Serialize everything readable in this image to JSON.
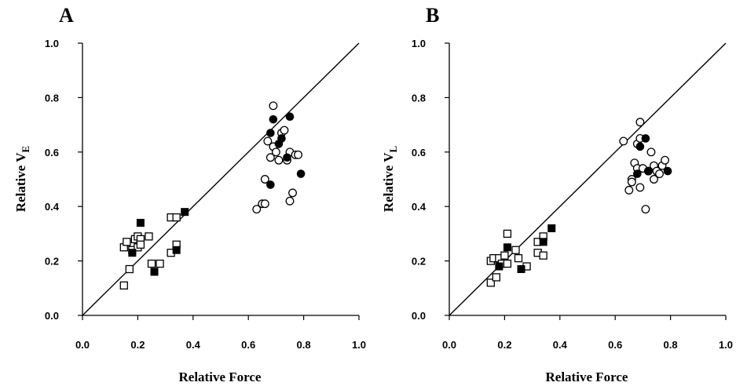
{
  "chart_data": [
    {
      "type": "scatter",
      "panel_label": "A",
      "xlabel": "Relative Force",
      "ylabel_main": "Relative V",
      "ylabel_sub": "E",
      "xlim": [
        0.0,
        1.0
      ],
      "ylim": [
        0.0,
        1.0
      ],
      "xticks": [
        "0.0",
        "0.2",
        "0.4",
        "0.6",
        "0.8",
        "1.0"
      ],
      "yticks": [
        "0.0",
        "0.2",
        "0.4",
        "0.6",
        "0.8",
        "1.0"
      ],
      "reference_line": [
        [
          0,
          0
        ],
        [
          1,
          1
        ]
      ],
      "series": [
        {
          "marker": "open-square",
          "points": [
            [
              0.15,
              0.11
            ],
            [
              0.15,
              0.25
            ],
            [
              0.16,
              0.27
            ],
            [
              0.17,
              0.17
            ],
            [
              0.18,
              0.24
            ],
            [
              0.19,
              0.28
            ],
            [
              0.2,
              0.29
            ],
            [
              0.2,
              0.25
            ],
            [
              0.21,
              0.28
            ],
            [
              0.21,
              0.26
            ],
            [
              0.24,
              0.29
            ],
            [
              0.25,
              0.19
            ],
            [
              0.28,
              0.19
            ],
            [
              0.32,
              0.23
            ],
            [
              0.32,
              0.36
            ],
            [
              0.34,
              0.36
            ],
            [
              0.34,
              0.26
            ]
          ]
        },
        {
          "marker": "filled-square",
          "points": [
            [
              0.18,
              0.23
            ],
            [
              0.21,
              0.34
            ],
            [
              0.26,
              0.16
            ],
            [
              0.34,
              0.24
            ],
            [
              0.37,
              0.38
            ]
          ]
        },
        {
          "marker": "open-circle",
          "points": [
            [
              0.63,
              0.39
            ],
            [
              0.65,
              0.41
            ],
            [
              0.66,
              0.41
            ],
            [
              0.66,
              0.5
            ],
            [
              0.67,
              0.64
            ],
            [
              0.68,
              0.58
            ],
            [
              0.69,
              0.77
            ],
            [
              0.69,
              0.62
            ],
            [
              0.7,
              0.6
            ],
            [
              0.71,
              0.57
            ],
            [
              0.72,
              0.67
            ],
            [
              0.73,
              0.68
            ],
            [
              0.74,
              0.57
            ],
            [
              0.75,
              0.6
            ],
            [
              0.75,
              0.42
            ],
            [
              0.76,
              0.45
            ],
            [
              0.77,
              0.59
            ],
            [
              0.78,
              0.59
            ]
          ]
        },
        {
          "marker": "filled-circle",
          "points": [
            [
              0.68,
              0.48
            ],
            [
              0.68,
              0.67
            ],
            [
              0.69,
              0.72
            ],
            [
              0.71,
              0.63
            ],
            [
              0.72,
              0.65
            ],
            [
              0.74,
              0.58
            ],
            [
              0.75,
              0.73
            ],
            [
              0.79,
              0.52
            ]
          ]
        }
      ]
    },
    {
      "type": "scatter",
      "panel_label": "B",
      "xlabel": "Relative Force",
      "ylabel_main": "Relative V",
      "ylabel_sub": "L",
      "xlim": [
        0.0,
        1.0
      ],
      "ylim": [
        0.0,
        1.0
      ],
      "xticks": [
        "0.0",
        "0.2",
        "0.4",
        "0.6",
        "0.8",
        "1.0"
      ],
      "yticks": [
        "0.0",
        "0.2",
        "0.4",
        "0.6",
        "0.8",
        "1.0"
      ],
      "reference_line": [
        [
          0,
          0
        ],
        [
          1,
          1
        ]
      ],
      "series": [
        {
          "marker": "open-square",
          "points": [
            [
              0.15,
              0.12
            ],
            [
              0.15,
              0.2
            ],
            [
              0.16,
              0.21
            ],
            [
              0.17,
              0.14
            ],
            [
              0.18,
              0.21
            ],
            [
              0.19,
              0.19
            ],
            [
              0.2,
              0.22
            ],
            [
              0.21,
              0.3
            ],
            [
              0.21,
              0.19
            ],
            [
              0.24,
              0.24
            ],
            [
              0.25,
              0.21
            ],
            [
              0.28,
              0.18
            ],
            [
              0.32,
              0.23
            ],
            [
              0.32,
              0.27
            ],
            [
              0.34,
              0.29
            ],
            [
              0.34,
              0.22
            ]
          ]
        },
        {
          "marker": "filled-square",
          "points": [
            [
              0.18,
              0.18
            ],
            [
              0.21,
              0.25
            ],
            [
              0.26,
              0.17
            ],
            [
              0.34,
              0.27
            ],
            [
              0.37,
              0.32
            ]
          ]
        },
        {
          "marker": "open-circle",
          "points": [
            [
              0.63,
              0.64
            ],
            [
              0.65,
              0.46
            ],
            [
              0.66,
              0.5
            ],
            [
              0.66,
              0.49
            ],
            [
              0.67,
              0.56
            ],
            [
              0.68,
              0.54
            ],
            [
              0.68,
              0.63
            ],
            [
              0.69,
              0.71
            ],
            [
              0.69,
              0.65
            ],
            [
              0.7,
              0.54
            ],
            [
              0.69,
              0.47
            ],
            [
              0.71,
              0.39
            ],
            [
              0.72,
              0.53
            ],
            [
              0.73,
              0.6
            ],
            [
              0.74,
              0.55
            ],
            [
              0.74,
              0.5
            ],
            [
              0.75,
              0.53
            ],
            [
              0.76,
              0.52
            ],
            [
              0.77,
              0.55
            ],
            [
              0.78,
              0.57
            ]
          ]
        },
        {
          "marker": "filled-circle",
          "points": [
            [
              0.68,
              0.52
            ],
            [
              0.69,
              0.62
            ],
            [
              0.71,
              0.65
            ],
            [
              0.72,
              0.53
            ],
            [
              0.79,
              0.53
            ]
          ]
        }
      ]
    }
  ]
}
